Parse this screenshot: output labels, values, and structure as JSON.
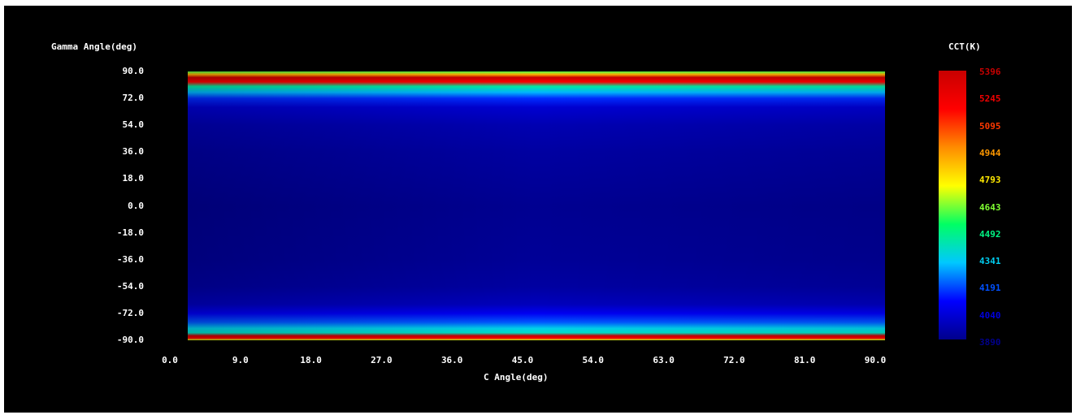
{
  "chart_data": {
    "type": "heatmap",
    "title": "",
    "xlabel": "C Angle(deg)",
    "ylabel": "Gamma Angle(deg)",
    "colorbar_label": "CCT(K)",
    "xlim": [
      0.0,
      90.0
    ],
    "ylim": [
      -90.0,
      90.0
    ],
    "x_ticks": [
      "0.0",
      "9.0",
      "18.0",
      "27.0",
      "36.0",
      "45.0",
      "54.0",
      "63.0",
      "72.0",
      "81.0",
      "90.0"
    ],
    "y_ticks": [
      "90.0",
      "72.0",
      "54.0",
      "36.0",
      "18.0",
      "0.0",
      "-18.0",
      "-36.0",
      "-54.0",
      "-72.0",
      "-90.0"
    ],
    "colorbar_ticks": [
      "5396",
      "5245",
      "5095",
      "4944",
      "4793",
      "4643",
      "4492",
      "4341",
      "4191",
      "4040",
      "3890"
    ],
    "colorbar_range": [
      3890,
      5396
    ],
    "colormap": [
      "#00008c",
      "#0000ff",
      "#00c8ff",
      "#00ff64",
      "#ffff00",
      "#ff8c00",
      "#ff0000",
      "#c80000"
    ],
    "gamma_profile": [
      {
        "gamma": 90.0,
        "cct": 4600
      },
      {
        "gamma": 88.0,
        "cct": 4900
      },
      {
        "gamma": 86.0,
        "cct": 5396
      },
      {
        "gamma": 83.0,
        "cct": 5200
      },
      {
        "gamma": 80.0,
        "cct": 4450
      },
      {
        "gamma": 76.0,
        "cct": 4300
      },
      {
        "gamma": 72.0,
        "cct": 4150
      },
      {
        "gamma": 66.0,
        "cct": 4020
      },
      {
        "gamma": 54.0,
        "cct": 3960
      },
      {
        "gamma": 36.0,
        "cct": 3930
      },
      {
        "gamma": 0.0,
        "cct": 3900
      },
      {
        "gamma": -36.0,
        "cct": 3910
      },
      {
        "gamma": -54.0,
        "cct": 3930
      },
      {
        "gamma": -66.0,
        "cct": 3980
      },
      {
        "gamma": -72.0,
        "cct": 4080
      },
      {
        "gamma": -78.0,
        "cct": 4200
      },
      {
        "gamma": -82.0,
        "cct": 4350
      },
      {
        "gamma": -85.0,
        "cct": 4400
      },
      {
        "gamma": -87.0,
        "cct": 5396
      },
      {
        "gamma": -88.5,
        "cct": 5200
      },
      {
        "gamma": -90.0,
        "cct": 4700
      }
    ]
  }
}
